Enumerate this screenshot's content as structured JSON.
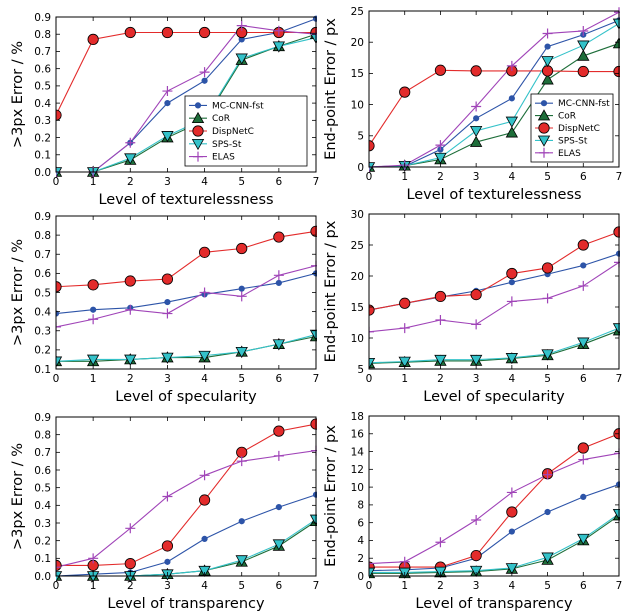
{
  "chart_data": [
    {
      "type": "line",
      "xlabel": "Level of texturelessness",
      "ylabel": ">3px Error / %",
      "x": [
        0,
        1,
        2,
        3,
        4,
        5,
        6,
        7
      ],
      "xlim": [
        0,
        7
      ],
      "ylim": [
        0,
        0.9
      ],
      "xticks": [
        "0",
        "1",
        "2",
        "3",
        "4",
        "5",
        "6",
        "7"
      ],
      "yticks": [
        "0.0",
        "0.1",
        "0.2",
        "0.3",
        "0.4",
        "0.5",
        "0.6",
        "0.7",
        "0.8",
        "0.9"
      ],
      "grid": false,
      "legend": "lower-right",
      "series": [
        {
          "name": "MC-CNN-fst",
          "values": [
            0.0,
            0.0,
            0.17,
            0.4,
            0.53,
            0.77,
            0.81,
            0.89
          ]
        },
        {
          "name": "CoR",
          "values": [
            0.0,
            0.0,
            0.07,
            0.2,
            0.3,
            0.65,
            0.73,
            0.8
          ]
        },
        {
          "name": "DispNetC",
          "values": [
            0.33,
            0.77,
            0.81,
            0.81,
            0.81,
            0.81,
            0.81,
            0.81
          ]
        },
        {
          "name": "SPS-St",
          "values": [
            0.0,
            0.0,
            0.08,
            0.21,
            0.31,
            0.66,
            0.73,
            0.78
          ]
        },
        {
          "name": "ELAS",
          "values": [
            0.0,
            0.0,
            0.17,
            0.47,
            0.58,
            0.85,
            0.82,
            0.8
          ]
        }
      ]
    },
    {
      "type": "line",
      "xlabel": "Level of texturelessness",
      "ylabel": "End-point Error / px",
      "x": [
        0,
        1,
        2,
        3,
        4,
        5,
        6,
        7
      ],
      "xlim": [
        0,
        7
      ],
      "ylim": [
        0,
        25
      ],
      "xticks": [
        "0",
        "1",
        "2",
        "3",
        "4",
        "5",
        "6",
        "7"
      ],
      "yticks": [
        "0",
        "5",
        "10",
        "15",
        "20",
        "25"
      ],
      "grid": false,
      "legend": "lower-right",
      "series": [
        {
          "name": "MC-CNN-fst",
          "values": [
            0.0,
            0.1,
            2.8,
            7.8,
            11.0,
            19.3,
            21.2,
            23.5
          ]
        },
        {
          "name": "CoR",
          "values": [
            0.0,
            0.2,
            1.2,
            4.0,
            5.5,
            14.0,
            17.8,
            19.8
          ]
        },
        {
          "name": "DispNetC",
          "values": [
            3.4,
            12.0,
            15.5,
            15.4,
            15.4,
            15.4,
            15.3,
            15.3
          ]
        },
        {
          "name": "SPS-St",
          "values": [
            0.0,
            0.2,
            1.5,
            5.8,
            7.3,
            17.0,
            19.5,
            23.0
          ]
        },
        {
          "name": "ELAS",
          "values": [
            0.0,
            0.3,
            3.5,
            9.7,
            16.2,
            21.4,
            21.8,
            24.8
          ]
        }
      ]
    },
    {
      "type": "line",
      "xlabel": "Level of specularity",
      "ylabel": ">3px Error / %",
      "x": [
        0,
        1,
        2,
        3,
        4,
        5,
        6,
        7
      ],
      "xlim": [
        0,
        7
      ],
      "ylim": [
        0.1,
        0.9
      ],
      "xticks": [
        "0",
        "1",
        "2",
        "3",
        "4",
        "5",
        "6",
        "7"
      ],
      "yticks": [
        "0.1",
        "0.2",
        "0.3",
        "0.4",
        "0.5",
        "0.6",
        "0.7",
        "0.8",
        "0.9"
      ],
      "grid": false,
      "series": [
        {
          "name": "MC-CNN-fst",
          "values": [
            0.39,
            0.41,
            0.42,
            0.45,
            0.49,
            0.52,
            0.55,
            0.6
          ]
        },
        {
          "name": "CoR",
          "values": [
            0.14,
            0.14,
            0.15,
            0.16,
            0.16,
            0.19,
            0.23,
            0.27
          ]
        },
        {
          "name": "DispNetC",
          "values": [
            0.53,
            0.54,
            0.56,
            0.57,
            0.71,
            0.73,
            0.79,
            0.82
          ]
        },
        {
          "name": "SPS-St",
          "values": [
            0.14,
            0.15,
            0.15,
            0.16,
            0.17,
            0.19,
            0.23,
            0.28
          ]
        },
        {
          "name": "ELAS",
          "values": [
            0.32,
            0.36,
            0.41,
            0.39,
            0.5,
            0.48,
            0.59,
            0.64
          ]
        }
      ]
    },
    {
      "type": "line",
      "xlabel": "Level of specularity",
      "ylabel": "End-point Error / px",
      "x": [
        0,
        1,
        2,
        3,
        4,
        5,
        6,
        7
      ],
      "xlim": [
        0,
        7
      ],
      "ylim": [
        5,
        30
      ],
      "xticks": [
        "0",
        "1",
        "2",
        "3",
        "4",
        "5",
        "6",
        "7"
      ],
      "yticks": [
        "5",
        "10",
        "15",
        "20",
        "25",
        "30"
      ],
      "grid": false,
      "series": [
        {
          "name": "MC-CNN-fst",
          "values": [
            14.5,
            15.6,
            16.6,
            17.6,
            19.0,
            20.3,
            21.7,
            23.6
          ]
        },
        {
          "name": "CoR",
          "values": [
            5.9,
            6.1,
            6.3,
            6.3,
            6.7,
            7.2,
            9.0,
            11.2
          ]
        },
        {
          "name": "DispNetC",
          "values": [
            14.5,
            15.6,
            16.7,
            17.0,
            20.4,
            21.3,
            25.0,
            27.1
          ]
        },
        {
          "name": "SPS-St",
          "values": [
            6.0,
            6.2,
            6.5,
            6.5,
            6.8,
            7.4,
            9.3,
            11.6
          ]
        },
        {
          "name": "ELAS",
          "values": [
            11.0,
            11.6,
            12.9,
            12.2,
            15.9,
            16.4,
            18.4,
            22.2
          ]
        }
      ]
    },
    {
      "type": "line",
      "xlabel": "Level of transparency",
      "ylabel": ">3px Error / %",
      "x": [
        0,
        1,
        2,
        3,
        4,
        5,
        6,
        7
      ],
      "xlim": [
        0,
        7
      ],
      "ylim": [
        0,
        0.9
      ],
      "xticks": [
        "0",
        "1",
        "2",
        "3",
        "4",
        "5",
        "6",
        "7"
      ],
      "yticks": [
        "0.0",
        "0.1",
        "0.2",
        "0.3",
        "0.4",
        "0.5",
        "0.6",
        "0.7",
        "0.8",
        "0.9"
      ],
      "grid": false,
      "series": [
        {
          "name": "MC-CNN-fst",
          "values": [
            0.0,
            0.01,
            0.02,
            0.08,
            0.21,
            0.31,
            0.39,
            0.46
          ]
        },
        {
          "name": "CoR",
          "values": [
            0.0,
            0.0,
            0.0,
            0.01,
            0.03,
            0.08,
            0.17,
            0.31
          ]
        },
        {
          "name": "DispNetC",
          "values": [
            0.06,
            0.06,
            0.07,
            0.17,
            0.43,
            0.7,
            0.82,
            0.86
          ]
        },
        {
          "name": "SPS-St",
          "values": [
            0.0,
            0.0,
            0.0,
            0.01,
            0.03,
            0.09,
            0.18,
            0.32
          ]
        },
        {
          "name": "ELAS",
          "values": [
            0.05,
            0.1,
            0.27,
            0.45,
            0.57,
            0.65,
            0.68,
            0.71
          ]
        }
      ]
    },
    {
      "type": "line",
      "xlabel": "Level of transparency",
      "ylabel": "End-point Error / px",
      "x": [
        0,
        1,
        2,
        3,
        4,
        5,
        6,
        7
      ],
      "xlim": [
        0,
        7
      ],
      "ylim": [
        0,
        18
      ],
      "xticks": [
        "0",
        "1",
        "2",
        "3",
        "4",
        "5",
        "6",
        "7"
      ],
      "yticks": [
        "0",
        "2",
        "4",
        "6",
        "8",
        "10",
        "12",
        "14",
        "16",
        "18"
      ],
      "grid": false,
      "series": [
        {
          "name": "MC-CNN-fst",
          "values": [
            0.6,
            0.7,
            0.9,
            2.0,
            5.0,
            7.2,
            8.9,
            10.3
          ]
        },
        {
          "name": "CoR",
          "values": [
            0.3,
            0.3,
            0.4,
            0.5,
            0.8,
            1.8,
            4.0,
            6.8
          ]
        },
        {
          "name": "DispNetC",
          "values": [
            1.0,
            1.0,
            1.0,
            2.3,
            7.2,
            11.5,
            14.4,
            16.0
          ]
        },
        {
          "name": "SPS-St",
          "values": [
            0.4,
            0.4,
            0.5,
            0.6,
            0.9,
            2.1,
            4.2,
            7.0
          ]
        },
        {
          "name": "ELAS",
          "values": [
            1.4,
            1.6,
            3.8,
            6.3,
            9.4,
            11.4,
            13.1,
            13.8
          ]
        }
      ]
    }
  ],
  "styles": {
    "MC-CNN-fst": {
      "color": "#2d54a8",
      "marker": "dot"
    },
    "CoR": {
      "color": "#1e6e3a",
      "marker": "triangle-up"
    },
    "DispNetC": {
      "color": "#e32b2b",
      "marker": "circle"
    },
    "SPS-St": {
      "color": "#34c2c9",
      "marker": "triangle-down"
    },
    "ELAS": {
      "color": "#a044b8",
      "marker": "plus"
    }
  }
}
